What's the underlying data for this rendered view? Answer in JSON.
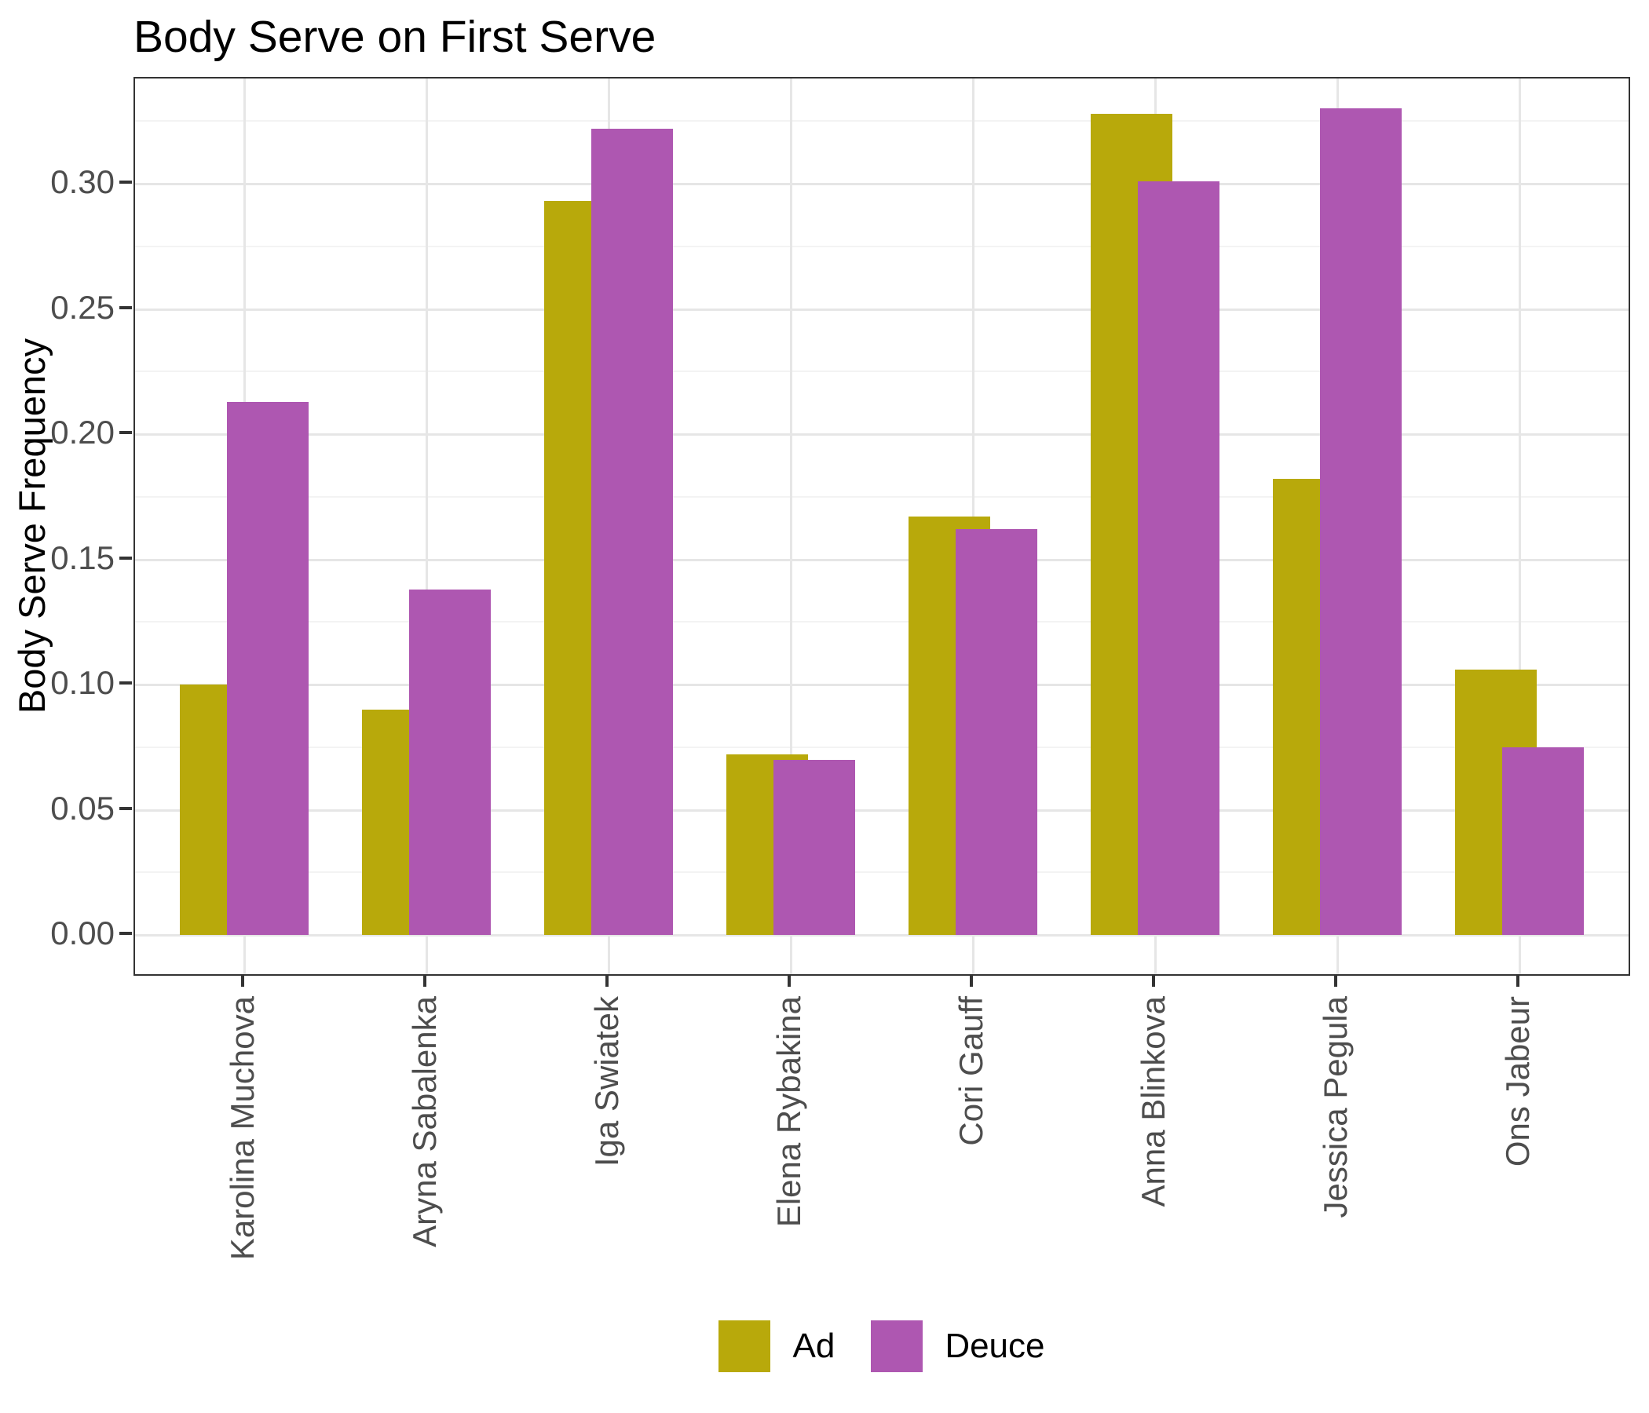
{
  "chart_data": {
    "type": "bar",
    "title": "Body Serve on First Serve",
    "xlabel": "",
    "ylabel": "Body Serve Frequency",
    "categories": [
      "Karolina Muchova",
      "Aryna Sabalenka",
      "Iga Swiatek",
      "Elena Rybakina",
      "Cori Gauff",
      "Anna Blinkova",
      "Jessica Pegula",
      "Ons Jabeur"
    ],
    "series": [
      {
        "name": "Ad",
        "color": "#B8A90B",
        "values": [
          0.1,
          0.09,
          0.293,
          0.072,
          0.167,
          0.328,
          0.182,
          0.106
        ]
      },
      {
        "name": "Deuce",
        "color": "#AE57B1",
        "values": [
          0.213,
          0.138,
          0.322,
          0.07,
          0.162,
          0.301,
          0.33,
          0.075
        ]
      }
    ],
    "ylim": [
      0,
      0.3465
    ],
    "yticks": [
      "0.00",
      "0.05",
      "0.10",
      "0.15",
      "0.20",
      "0.25",
      "0.30"
    ],
    "major_grid_step": 0.05,
    "minor_grid_step": 0.025,
    "grid": true,
    "legend_position": "bottom",
    "bar_style": "overlapping-dodge",
    "colors": {
      "axis_text": "#4d4d4d",
      "grid_major": "#e6e6e6",
      "grid_minor": "#f3f3f3",
      "panel_border": "#333333",
      "tick_mark": "#333333",
      "title_text": "#000000"
    }
  }
}
